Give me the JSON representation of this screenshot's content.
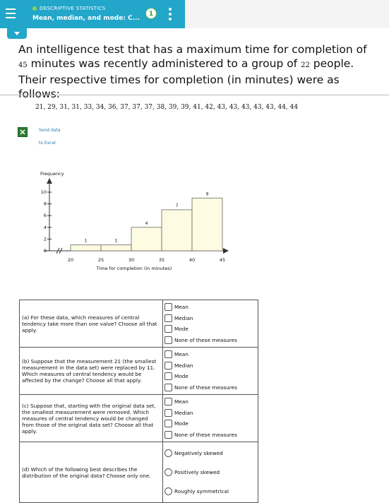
{
  "header": {
    "subtitle": "DESCRIPTIVE STATISTICS",
    "title": "Mean, median, and mode: C...",
    "badge": "1"
  },
  "question": {
    "parts": [
      "An intelligence test that has a maximum time for completion of",
      "45",
      "minutes was recently administered to a group of",
      "22",
      "people. Their respective times for completion (in minutes) were as follows:"
    ],
    "data": "21, 29, 31, 31, 33, 34, 36, 37, 37, 37, 38, 39, 39, 41, 42, 43, 43, 43, 43, 43, 44, 44"
  },
  "excel": {
    "line1": "Send data",
    "line2": "to Excel"
  },
  "chart_data": {
    "type": "histogram",
    "y_label": "Frequency",
    "x_label": "Time for completion (in minutes)",
    "bins": [
      20,
      25,
      30,
      35,
      40,
      45
    ],
    "values": [
      1,
      1,
      4,
      7,
      9
    ],
    "color": "#fdfbe1",
    "xlim": [
      20,
      45
    ],
    "xticks": [
      20,
      25,
      30,
      35,
      40,
      45
    ],
    "ylim": [
      0,
      12
    ],
    "yticks": [
      0,
      2,
      4,
      6,
      8,
      10
    ]
  },
  "table": {
    "rows": [
      {
        "question": "(a) For these data, which measures of central tendency take more than one value? Choose all that apply.",
        "options": [
          "Mean",
          "Median",
          "Mode",
          "None of these measures"
        ]
      },
      {
        "question": "(b) Suppose that the measurement 21 (the smallest measurement in the data set) were replaced by 11. Which measures of central tendency would be affected by the change? Choose all that apply.",
        "options": [
          "Mean",
          "Median",
          "Mode",
          "None of these measures"
        ]
      },
      {
        "question": "(c) Suppose that, starting with the original data set, the smallest measurement were removed. Which measures of central tendency would be changed from those of the original data set? Choose all that apply.",
        "options": [
          "Mean",
          "Median",
          "Mode",
          "None of these measures"
        ]
      },
      {
        "question": "(d) Which of the following best describes the distribution of the original data? Choose only one.",
        "options": [
          "Negatively skewed",
          "Positively skewed",
          "Roughly symmetrical"
        ]
      }
    ]
  }
}
